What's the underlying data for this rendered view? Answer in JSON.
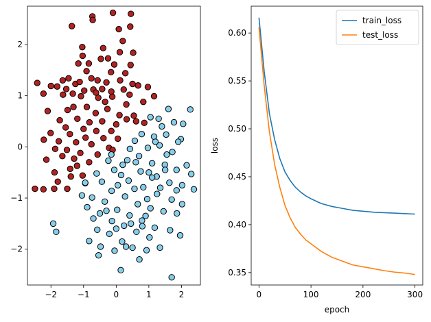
{
  "chart_data": [
    {
      "type": "scatter",
      "title": "",
      "xlabel": "",
      "ylabel": "",
      "xlim": [
        -2.72,
        2.58
      ],
      "ylim": [
        -2.7,
        2.75
      ],
      "xticks": [
        -2,
        -1,
        0,
        1,
        2
      ],
      "xtick_labels": [
        "−2",
        "−1",
        "0",
        "1",
        "2"
      ],
      "yticks": [
        -2,
        -1,
        0,
        1,
        2
      ],
      "ytick_labels": [
        "−2",
        "−1",
        "0",
        "1",
        "2"
      ],
      "grid": false,
      "series": [
        {
          "color": "#b22222",
          "points": [
            [
              -0.1,
              2.62
            ],
            [
              0.45,
              2.6
            ],
            [
              -1.36,
              2.36
            ],
            [
              -0.73,
              2.55
            ],
            [
              0.08,
              2.3
            ],
            [
              0.43,
              2.35
            ],
            [
              -0.72,
              2.48
            ],
            [
              0.2,
              2.07
            ],
            [
              -0.4,
              1.93
            ],
            [
              -1.04,
              1.95
            ],
            [
              -1.03,
              1.78
            ],
            [
              -0.25,
              1.73
            ],
            [
              0.11,
              1.85
            ],
            [
              0.52,
              1.84
            ],
            [
              -1.16,
              1.63
            ],
            [
              -0.84,
              1.63
            ],
            [
              -0.47,
              1.72
            ],
            [
              -0.06,
              1.61
            ],
            [
              0.44,
              1.6
            ],
            [
              -0.91,
              1.48
            ],
            [
              -0.16,
              1.46
            ],
            [
              0.28,
              1.44
            ],
            [
              -1.64,
              1.3
            ],
            [
              -1.46,
              1.34
            ],
            [
              -1.25,
              1.23
            ],
            [
              -0.76,
              1.34
            ],
            [
              -0.57,
              1.3
            ],
            [
              -0.3,
              1.26
            ],
            [
              0.12,
              1.3
            ],
            [
              0.5,
              1.23
            ],
            [
              -2.42,
              1.25
            ],
            [
              -2.0,
              1.19
            ],
            [
              -1.81,
              1.18
            ],
            [
              -1.53,
              1.13
            ],
            [
              -1.33,
              1.04
            ],
            [
              -0.98,
              1.1
            ],
            [
              -0.7,
              1.12
            ],
            [
              -0.43,
              1.13
            ],
            [
              -0.15,
              1.08
            ],
            [
              0.23,
              1.12
            ],
            [
              0.67,
              1.2
            ],
            [
              0.97,
              1.17
            ],
            [
              -2.23,
              1.04
            ],
            [
              -1.63,
              1.02
            ],
            [
              -1.08,
              0.99
            ],
            [
              -0.55,
              0.96
            ],
            [
              -0.12,
              0.98
            ],
            [
              0.41,
              1.02
            ],
            [
              0.83,
              0.88
            ],
            [
              1.16,
              0.99
            ],
            [
              -1.49,
              0.72
            ],
            [
              -1.31,
              0.78
            ],
            [
              -0.9,
              0.78
            ],
            [
              -0.63,
              0.66
            ],
            [
              -0.27,
              0.74
            ],
            [
              0.1,
              0.62
            ],
            [
              0.54,
              0.61
            ],
            [
              -2.1,
              0.7
            ],
            [
              -1.73,
              0.52
            ],
            [
              -1.19,
              0.55
            ],
            [
              -0.82,
              0.48
            ],
            [
              -0.43,
              0.5
            ],
            [
              0.0,
              0.44
            ],
            [
              0.32,
              0.54
            ],
            [
              0.61,
              0.5
            ],
            [
              0.86,
              0.47
            ],
            [
              -1.55,
              0.38
            ],
            [
              -1.0,
              0.35
            ],
            [
              -0.61,
              0.31
            ],
            [
              -0.15,
              0.31
            ],
            [
              -2.01,
              0.27
            ],
            [
              -1.42,
              0.25
            ],
            [
              -0.94,
              0.18
            ],
            [
              -0.39,
              0.17
            ],
            [
              0.05,
              0.16
            ],
            [
              -2.22,
              0.14
            ],
            [
              -1.76,
              0.11
            ],
            [
              -1.23,
              0.09
            ],
            [
              -0.76,
              0.05
            ],
            [
              -0.22,
              -0.02
            ],
            [
              -1.87,
              -0.04
            ],
            [
              -1.51,
              -0.06
            ],
            [
              -1.1,
              -0.12
            ],
            [
              -0.57,
              -0.15
            ],
            [
              -0.11,
              -0.06
            ],
            [
              -2.14,
              -0.25
            ],
            [
              -1.65,
              -0.18
            ],
            [
              -1.29,
              -0.23
            ],
            [
              -0.83,
              -0.3
            ],
            [
              -1.89,
              -0.5
            ],
            [
              -1.41,
              -0.43
            ],
            [
              -1.03,
              -0.56
            ],
            [
              -1.39,
              -0.58
            ],
            [
              -0.95,
              -0.71
            ],
            [
              -2.49,
              -0.82
            ],
            [
              -2.23,
              -0.83
            ],
            [
              -1.9,
              -0.82
            ],
            [
              -1.5,
              -0.82
            ],
            [
              -1.79,
              -0.68
            ],
            [
              -1.2,
              -0.37
            ],
            [
              -0.34,
              0.88
            ],
            [
              0.31,
              0.83
            ],
            [
              -1.12,
              1.27
            ],
            [
              -0.62,
              1.06
            ]
          ]
        },
        {
          "color": "#87ceeb",
          "points": [
            [
              1.6,
              0.74
            ],
            [
              2.27,
              0.73
            ],
            [
              1.05,
              0.58
            ],
            [
              1.77,
              0.48
            ],
            [
              1.4,
              0.4
            ],
            [
              2.05,
              0.45
            ],
            [
              1.16,
              0.2
            ],
            [
              1.53,
              0.24
            ],
            [
              1.98,
              0.15
            ],
            [
              0.97,
              -0.02
            ],
            [
              1.33,
              0.03
            ],
            [
              1.72,
              -0.1
            ],
            [
              2.16,
              -0.36
            ],
            [
              0.7,
              -0.18
            ],
            [
              1.1,
              -0.32
            ],
            [
              1.49,
              -0.35
            ],
            [
              1.85,
              -0.45
            ],
            [
              2.3,
              -0.53
            ],
            [
              0.34,
              -0.26
            ],
            [
              0.75,
              -0.48
            ],
            [
              1.24,
              -0.58
            ],
            [
              1.63,
              -0.7
            ],
            [
              2.02,
              -0.75
            ],
            [
              2.38,
              -0.83
            ],
            [
              -0.06,
              -0.45
            ],
            [
              0.38,
              -0.66
            ],
            [
              0.83,
              -0.79
            ],
            [
              1.25,
              -0.92
            ],
            [
              1.7,
              -1.03
            ],
            [
              2.02,
              -1.12
            ],
            [
              -0.44,
              -0.68
            ],
            [
              -0.14,
              -0.86
            ],
            [
              0.27,
              -0.97
            ],
            [
              0.66,
              -1.12
            ],
            [
              1.05,
              -1.2
            ],
            [
              1.45,
              -1.26
            ],
            [
              1.86,
              -1.3
            ],
            [
              -0.74,
              -0.99
            ],
            [
              -0.35,
              -1.07
            ],
            [
              0.03,
              -1.23
            ],
            [
              0.41,
              -1.34
            ],
            [
              0.79,
              -1.44
            ],
            [
              1.18,
              -1.58
            ],
            [
              1.65,
              -1.63
            ],
            [
              1.96,
              -1.73
            ],
            [
              -0.89,
              -1.18
            ],
            [
              -0.5,
              -1.3
            ],
            [
              -0.13,
              -1.45
            ],
            [
              0.24,
              -1.54
            ],
            [
              0.62,
              -1.66
            ],
            [
              1.02,
              -1.77
            ],
            [
              1.34,
              -1.97
            ],
            [
              -0.58,
              -1.62
            ],
            [
              -0.21,
              -1.7
            ],
            [
              0.18,
              -1.85
            ],
            [
              0.5,
              -1.97
            ],
            [
              0.93,
              -2.02
            ],
            [
              -0.48,
              -1.95
            ],
            [
              -0.05,
              -2.03
            ],
            [
              0.14,
              -2.41
            ],
            [
              0.71,
              -2.2
            ],
            [
              1.7,
              -2.55
            ],
            [
              -0.54,
              -2.12
            ],
            [
              -0.83,
              -1.84
            ],
            [
              -1.93,
              -1.5
            ],
            [
              -1.84,
              -1.66
            ],
            [
              0.42,
              -0.04
            ],
            [
              0.78,
              0.25
            ],
            [
              1.2,
              0.1
            ],
            [
              0.57,
              0.12
            ],
            [
              -0.24,
              -0.27
            ],
            [
              0.15,
              -0.55
            ],
            [
              0.56,
              -0.82
            ],
            [
              0.95,
              -1.02
            ],
            [
              -0.6,
              -0.52
            ],
            [
              -0.95,
              -0.7
            ],
            [
              -1.05,
              -0.95
            ],
            [
              0.05,
              -0.75
            ],
            [
              0.6,
              -0.3
            ],
            [
              1.0,
              -0.5
            ],
            [
              1.55,
              -0.15
            ],
            [
              1.9,
              0.1
            ],
            [
              1.35,
              -0.8
            ],
            [
              0.45,
              -1.5
            ],
            [
              0.9,
              -1.35
            ],
            [
              -0.3,
              -1.25
            ],
            [
              0.3,
              -1.95
            ],
            [
              1.1,
              -0.6
            ],
            [
              0.2,
              -0.35
            ],
            [
              -0.15,
              -0.15
            ],
            [
              1.3,
              0.55
            ],
            [
              1.5,
              -0.45
            ],
            [
              0.8,
              -1.55
            ],
            [
              -0.7,
              -1.4
            ],
            [
              0.0,
              -1.6
            ],
            [
              1.85,
              -0.85
            ]
          ]
        }
      ]
    },
    {
      "type": "line",
      "title": "",
      "xlabel": "epoch",
      "ylabel": "loss",
      "xlim": [
        -15,
        315
      ],
      "ylim": [
        0.337,
        0.628
      ],
      "xticks": [
        0,
        100,
        200,
        300
      ],
      "xtick_labels": [
        "0",
        "100",
        "200",
        "300"
      ],
      "yticks": [
        0.35,
        0.4,
        0.45,
        0.5,
        0.55,
        0.6
      ],
      "ytick_labels": [
        "0.35",
        "0.40",
        "0.45",
        "0.50",
        "0.55",
        "0.60"
      ],
      "grid": false,
      "legend": "top-right",
      "x": [
        0,
        10,
        20,
        30,
        40,
        50,
        60,
        70,
        80,
        90,
        100,
        120,
        140,
        160,
        180,
        200,
        220,
        240,
        260,
        280,
        300
      ],
      "series": [
        {
          "name": "train_loss",
          "color": "#1f77b4",
          "values": [
            0.616,
            0.56,
            0.516,
            0.489,
            0.469,
            0.455,
            0.446,
            0.439,
            0.434,
            0.43,
            0.427,
            0.422,
            0.419,
            0.417,
            0.415,
            0.414,
            0.413,
            0.4125,
            0.412,
            0.4115,
            0.411
          ]
        },
        {
          "name": "test_loss",
          "color": "#ff7f0e",
          "values": [
            0.606,
            0.545,
            0.497,
            0.463,
            0.439,
            0.42,
            0.407,
            0.397,
            0.39,
            0.384,
            0.38,
            0.372,
            0.366,
            0.362,
            0.358,
            0.356,
            0.354,
            0.352,
            0.3505,
            0.3495,
            0.348
          ]
        }
      ]
    }
  ]
}
